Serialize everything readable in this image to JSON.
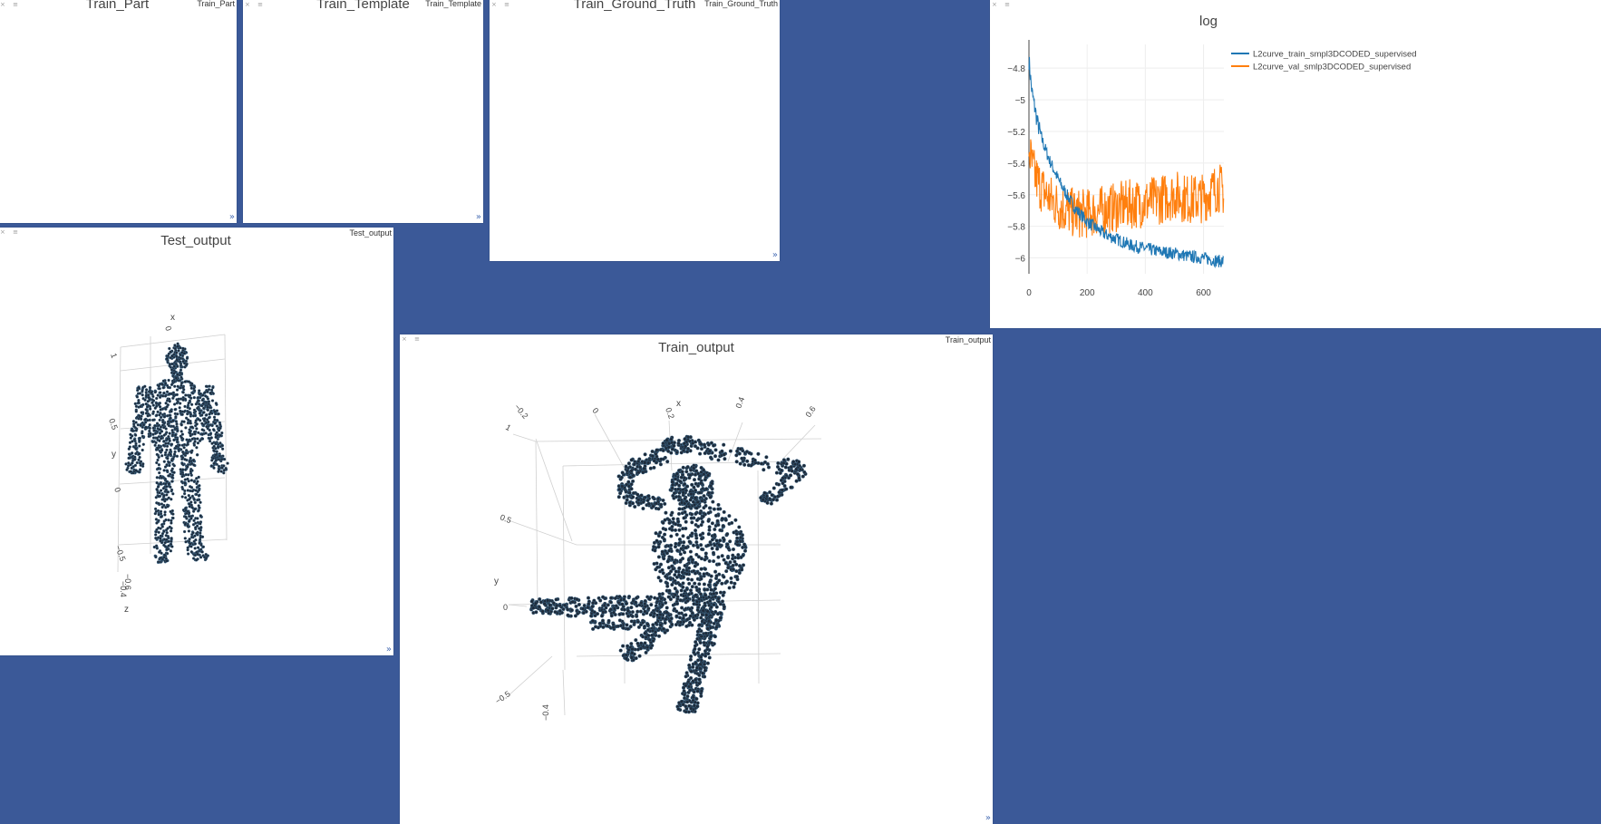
{
  "close_glyph": "×",
  "menu_glyph": "≡",
  "resize_glyph": "»",
  "windows": {
    "train_part": {
      "title": "Train_Part",
      "tag": "Train_Part"
    },
    "train_template": {
      "title": "Train_Template",
      "tag": "Train_Template"
    },
    "train_ground_truth": {
      "title": "Train_Ground_Truth",
      "tag": "Train_Ground_Truth"
    },
    "log": {
      "title": "log"
    },
    "test_output": {
      "title": "Test_output",
      "tag": "Test_output",
      "axes": {
        "x": "x",
        "y": "y",
        "z": "z"
      },
      "ticks": [
        "0",
        "1",
        "0.5",
        "0",
        "−0.5",
        "−0.6",
        "−0.4"
      ]
    },
    "train_output": {
      "title": "Train_output",
      "tag": "Train_output",
      "axes": {
        "x": "x",
        "y": "y"
      },
      "ticks_top": [
        "−0.2",
        "0",
        "0.2",
        "0.4",
        "0.6"
      ],
      "ticks_left": [
        "1",
        "0.5",
        "0",
        "−0.5"
      ],
      "tick_bottom": "−0.4"
    }
  },
  "colors": {
    "train": "#1f77b4",
    "val": "#ff7f0e",
    "point": "#1e2b3a",
    "bg": "#3b5998"
  },
  "chart_data": {
    "type": "line",
    "title": "log",
    "xlim": [
      0,
      670
    ],
    "ylim": [
      -6.1,
      -4.65
    ],
    "xticks": [
      0,
      200,
      400,
      600
    ],
    "yticks": [
      -4.8,
      -5,
      -5.2,
      -5.4,
      -5.6,
      -5.8,
      -6
    ],
    "grid": true,
    "legend_position": "top-right",
    "series": [
      {
        "name": "L2curve_train_smpl3DCODED_supervised",
        "x": [
          0,
          5,
          10,
          20,
          30,
          40,
          50,
          60,
          70,
          80,
          100,
          120,
          140,
          160,
          180,
          200,
          230,
          260,
          300,
          350,
          400,
          450,
          500,
          550,
          600,
          650,
          670
        ],
        "y": [
          -4.75,
          -4.85,
          -4.95,
          -5.05,
          -5.15,
          -5.22,
          -5.28,
          -5.33,
          -5.38,
          -5.42,
          -5.5,
          -5.57,
          -5.63,
          -5.69,
          -5.73,
          -5.77,
          -5.81,
          -5.85,
          -5.88,
          -5.92,
          -5.94,
          -5.96,
          -5.97,
          -5.99,
          -6.0,
          -6.02,
          -6.02
        ]
      },
      {
        "name": "L2curve_val_smlp3DCODED_supervised",
        "x": [
          0,
          10,
          20,
          40,
          60,
          80,
          100,
          130,
          160,
          200,
          250,
          300,
          350,
          400,
          450,
          500,
          550,
          600,
          650,
          670
        ],
        "y": [
          -5.3,
          -5.42,
          -5.48,
          -5.55,
          -5.6,
          -5.64,
          -5.67,
          -5.7,
          -5.72,
          -5.72,
          -5.7,
          -5.68,
          -5.66,
          -5.65,
          -5.63,
          -5.6,
          -5.63,
          -5.62,
          -5.55,
          -5.58
        ]
      }
    ]
  }
}
